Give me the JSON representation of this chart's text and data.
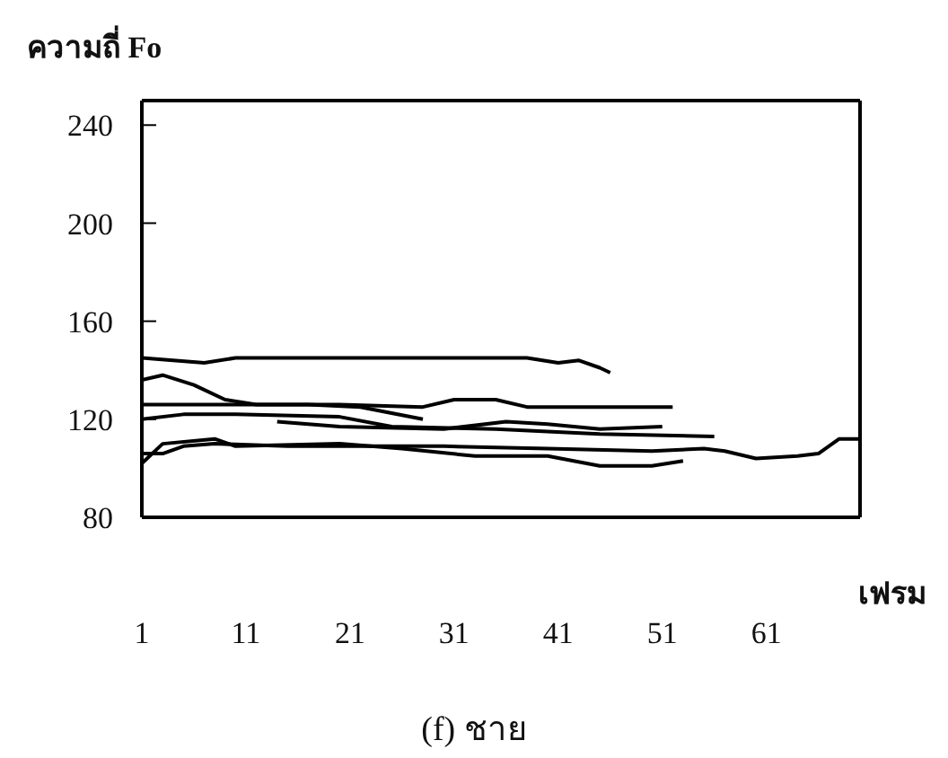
{
  "chart_data": {
    "type": "line",
    "ylabel": "ความถี่ Fo",
    "xlabel": "เฟรม",
    "annotations": [
      "(f) ชาย"
    ],
    "xlim": [
      1,
      70
    ],
    "xticks": [
      1,
      11,
      21,
      31,
      41,
      51,
      61
    ],
    "ylim": [
      80,
      250
    ],
    "yticks": [
      80,
      120,
      160,
      200,
      240
    ],
    "marker": "none",
    "line_style": "solid",
    "series": [
      {
        "color": "#000000",
        "x": [
          1,
          4,
          7,
          10,
          20,
          30,
          38,
          41,
          43,
          45,
          46
        ],
        "values": [
          145,
          144,
          143,
          145,
          145,
          145,
          145,
          143,
          144,
          141,
          139
        ]
      },
      {
        "color": "#000000",
        "x": [
          1,
          3,
          6,
          9,
          12,
          17,
          22,
          28
        ],
        "values": [
          136,
          138,
          134,
          128,
          126,
          126,
          125,
          120
        ]
      },
      {
        "color": "#000000",
        "x": [
          1,
          10,
          20,
          28,
          31,
          35,
          38,
          45,
          52
        ],
        "values": [
          126,
          126,
          126,
          125,
          128,
          128,
          125,
          125,
          125
        ]
      },
      {
        "color": "#000000",
        "x": [
          1,
          5,
          10,
          20,
          25,
          35,
          45,
          56
        ],
        "values": [
          120,
          122,
          122,
          121,
          117,
          116,
          114,
          113
        ]
      },
      {
        "color": "#000000",
        "x": [
          14,
          20,
          30,
          36,
          40,
          45,
          51
        ],
        "values": [
          119,
          117,
          116,
          119,
          118,
          116,
          117
        ]
      },
      {
        "color": "#000000",
        "x": [
          1,
          3,
          8,
          10,
          20,
          26,
          33,
          40,
          45,
          50,
          53
        ],
        "values": [
          102,
          110,
          112,
          109,
          110,
          108,
          105,
          105,
          101,
          101,
          103
        ]
      },
      {
        "color": "#000000",
        "x": [
          1,
          3,
          5,
          8,
          15,
          30,
          40,
          50,
          55,
          57,
          60,
          64,
          66,
          68,
          70
        ],
        "values": [
          106,
          106,
          109,
          110,
          109,
          109,
          108,
          107,
          108,
          107,
          104,
          105,
          106,
          112,
          112
        ]
      }
    ]
  }
}
